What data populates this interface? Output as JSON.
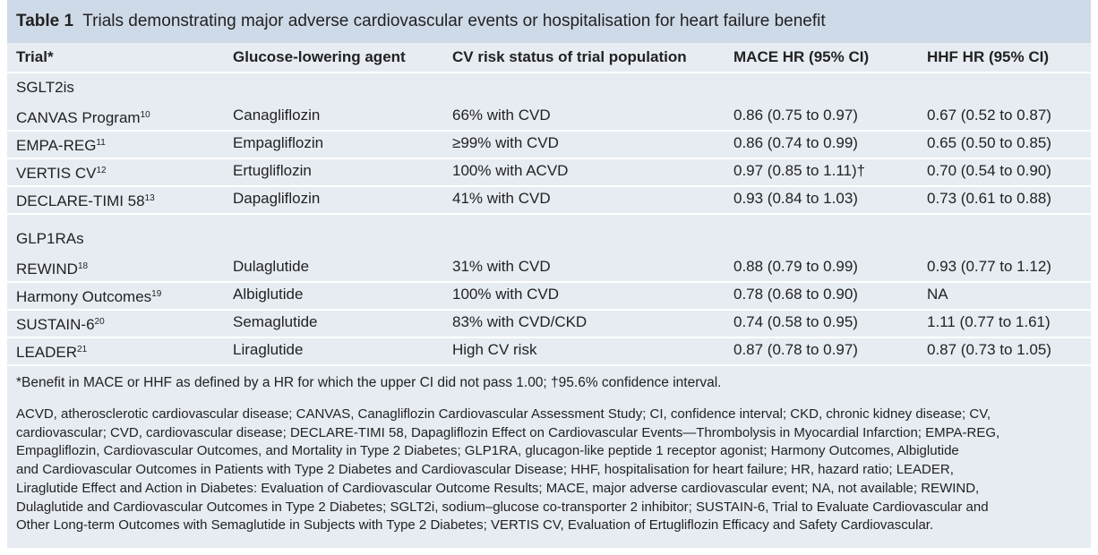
{
  "title": {
    "label": "Table 1",
    "text": "Trials demonstrating major adverse cardiovascular events or hospitalisation for heart failure benefit"
  },
  "table": {
    "columns": [
      "Trial*",
      "Glucose-lowering agent",
      "CV risk status of trial population",
      "MACE HR (95% CI)",
      "HHF HR (95% CI)"
    ],
    "groups": [
      {
        "label": "SGLT2is",
        "rows": [
          {
            "trial": "CANVAS Program",
            "ref": "10",
            "cells": [
              "Canagliflozin",
              "66% with CVD",
              "0.86 (0.75 to 0.97)",
              "0.67 (0.52 to 0.87)"
            ]
          },
          {
            "trial": "EMPA-REG",
            "ref": "11",
            "cells": [
              "Empagliflozin",
              "≥99% with CVD",
              "0.86 (0.74 to 0.99)",
              "0.65 (0.50 to 0.85)"
            ]
          },
          {
            "trial": "VERTIS CV",
            "ref": "12",
            "cells": [
              "Ertugliflozin",
              "100% with ACVD",
              "0.97 (0.85 to 1.11)†",
              "0.70 (0.54 to 0.90)"
            ]
          },
          {
            "trial": "DECLARE-TIMI 58",
            "ref": "13",
            "cells": [
              "Dapagliflozin",
              "41% with CVD",
              "0.93 (0.84 to 1.03)",
              "0.73 (0.61 to 0.88)"
            ]
          }
        ]
      },
      {
        "label": "GLP1RAs",
        "rows": [
          {
            "trial": "REWIND",
            "ref": "18",
            "cells": [
              "Dulaglutide",
              "31% with CVD",
              "0.88 (0.79 to 0.99)",
              "0.93 (0.77 to 1.12)"
            ]
          },
          {
            "trial": "Harmony Outcomes",
            "ref": "19",
            "cells": [
              "Albiglutide",
              "100% with CVD",
              "0.78 (0.68 to 0.90)",
              "NA"
            ]
          },
          {
            "trial": "SUSTAIN-6",
            "ref": "20",
            "cells": [
              "Semaglutide",
              "83% with CVD/CKD",
              "0.74 (0.58 to 0.95)",
              "1.11 (0.77 to 1.61)"
            ]
          },
          {
            "trial": "LEADER",
            "ref": "21",
            "cells": [
              "Liraglutide",
              "High CV risk",
              "0.87 (0.78 to 0.97)",
              "0.87 (0.73 to 1.05)"
            ]
          }
        ]
      }
    ]
  },
  "footnote": "*Benefit in MACE or HHF as defined by a HR for which the upper CI did not pass 1.00; †95.6% confidence interval.",
  "abbreviations": [
    "ACVD, atherosclerotic cardiovascular disease; CANVAS, Canagliflozin Cardiovascular Assessment Study; CI, confidence interval; CKD, chronic kidney disease; CV,",
    "cardiovascular; CVD, cardiovascular disease; DECLARE-TIMI 58, Dapagliflozin Effect on Cardiovascular Events—Thrombolysis in Myocardial Infarction; EMPA-REG,",
    "Empagliflozin, Cardiovascular Outcomes, and Mortality in Type 2 Diabetes; GLP1RA, glucagon-like peptide 1 receptor agonist; Harmony Outcomes, Albiglutide",
    "and Cardiovascular Outcomes in Patients with Type 2 Diabetes and Cardiovascular Disease; HHF, hospitalisation for heart failure; HR, hazard ratio; LEADER,",
    "Liraglutide Effect and Action in Diabetes: Evaluation of Cardiovascular Outcome Results; MACE, major adverse cardiovascular event; NA, not available; REWIND,",
    "Dulaglutide and Cardiovascular Outcomes in Type 2 Diabetes; SGLT2i, sodium–glucose co-transporter 2 inhibitor; SUSTAIN-6, Trial to Evaluate Cardiovascular and",
    "Other Long-term Outcomes with Semaglutide in Subjects with Type 2 Diabetes; VERTIS CV, Evaluation of Ertugliflozin Efficacy and Safety Cardiovascular."
  ]
}
